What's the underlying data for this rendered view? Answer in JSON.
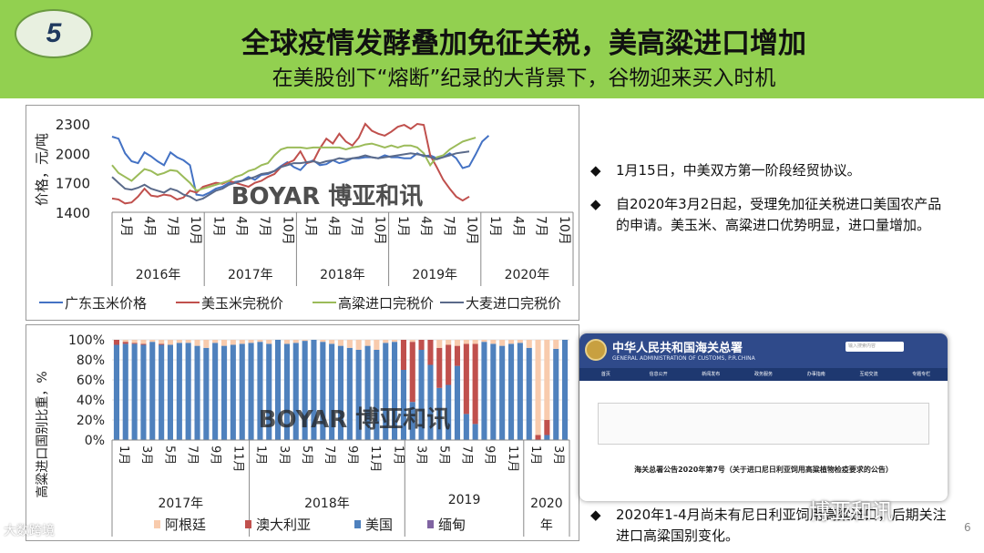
{
  "header": {
    "badge": "5",
    "title": "全球疫情发酵叠加免征关税，美高粱进口增加",
    "subtitle": "在美股创下“熔断”纪录的大背景下，谷物迎来买入时机"
  },
  "chart_data": [
    {
      "type": "line",
      "ylabel": "价格，元/吨",
      "ylim": [
        1400,
        2300
      ],
      "yticks": [
        1400,
        1700,
        2000,
        2300
      ],
      "x_tick_labels": [
        "1月",
        "4月",
        "7月",
        "10月",
        "1月",
        "4月",
        "7月",
        "10月",
        "1月",
        "4月",
        "7月",
        "10月",
        "1月",
        "4月",
        "7月",
        "10月",
        "1月",
        "4月",
        "7月",
        "10月"
      ],
      "year_labels": [
        "2016年",
        "2017年",
        "2018年",
        "2019年",
        "2020年"
      ],
      "watermark": "BOYAR 博亚和讯",
      "series": [
        {
          "name": "广东玉米价格",
          "color": "#4472c4",
          "values": [
            2170,
            2150,
            2000,
            1920,
            1900,
            2010,
            1970,
            1920,
            1880,
            2010,
            1960,
            1930,
            1880,
            1580,
            1570,
            1600,
            1640,
            1660,
            1700,
            1710,
            1720,
            1760,
            1730,
            1780,
            1790,
            1820,
            1870,
            1910,
            1860,
            1830,
            1900,
            1930,
            1880,
            1890,
            1930,
            1900,
            1920,
            1950,
            1950,
            1960,
            1960,
            1950,
            1980,
            1960,
            1960,
            1950,
            1950,
            2000,
            1970,
            1980,
            1950,
            1960,
            2000,
            1950,
            1850,
            1870,
            1990,
            2120,
            2180,
            null,
            null,
            null,
            null,
            null,
            null,
            null,
            null,
            null,
            null,
            null,
            null,
            null
          ]
        },
        {
          "name": "美玉米完税价",
          "color": "#c0504d",
          "values": [
            1540,
            1530,
            1490,
            1500,
            1560,
            1640,
            1570,
            1560,
            1580,
            1570,
            1530,
            1550,
            1620,
            1600,
            1660,
            1680,
            1700,
            1690,
            1720,
            1700,
            1680,
            1660,
            1700,
            1720,
            1760,
            1790,
            1860,
            1900,
            1930,
            2020,
            1900,
            1920,
            2050,
            2150,
            2100,
            2200,
            2120,
            2080,
            2160,
            2300,
            2230,
            2200,
            2180,
            2220,
            2270,
            2290,
            2250,
            2300,
            2290,
            1980,
            1860,
            1730,
            1640,
            1560,
            1520,
            1560,
            null,
            null,
            null,
            null,
            null,
            null,
            null,
            null,
            null,
            null,
            null,
            null,
            null,
            null,
            null,
            null
          ]
        },
        {
          "name": "高粱进口完税价",
          "color": "#9bbb59",
          "values": [
            1880,
            1800,
            1760,
            1720,
            1780,
            1840,
            1820,
            1780,
            1800,
            1830,
            1820,
            1760,
            1700,
            1620,
            1640,
            1660,
            1680,
            1700,
            1720,
            1760,
            1780,
            1820,
            1840,
            1880,
            1900,
            1980,
            2040,
            2060,
            2060,
            2060,
            2050,
            2060,
            2060,
            2060,
            2060,
            2060,
            2040,
            2060,
            2070,
            2090,
            2100,
            2080,
            2060,
            2080,
            2060,
            2080,
            2080,
            2060,
            2000,
            1880,
            1960,
            1980,
            2040,
            2080,
            2120,
            2140,
            2160,
            null,
            null,
            null,
            null,
            null,
            null,
            null,
            null,
            null,
            null,
            null,
            null,
            null,
            null,
            null
          ]
        },
        {
          "name": "大麦进口完税价",
          "color": "#5a6a8a",
          "values": [
            1760,
            1700,
            1640,
            1630,
            1650,
            1680,
            1640,
            1620,
            1600,
            1640,
            1620,
            1580,
            1560,
            1520,
            1540,
            1580,
            1620,
            1640,
            1680,
            1700,
            1720,
            1740,
            1760,
            1790,
            1800,
            1820,
            1860,
            1880,
            1900,
            1900,
            1910,
            1920,
            1900,
            1920,
            1930,
            1950,
            1940,
            1950,
            1960,
            1980,
            1960,
            1950,
            1960,
            1970,
            1980,
            1990,
            2000,
            1990,
            1980,
            1960,
            1940,
            1960,
            1980,
            2000,
            2010,
            2020,
            null,
            null,
            null,
            null,
            null,
            null,
            null,
            null,
            null,
            null,
            null,
            null,
            null,
            null,
            null,
            null
          ]
        }
      ]
    },
    {
      "type": "bar",
      "stacked": true,
      "ylabel": "高粱进口国别比重，%",
      "ylim": [
        0,
        100
      ],
      "yticks": [
        "0%",
        "20%",
        "40%",
        "60%",
        "80%",
        "100%"
      ],
      "x_tick_labels": [
        "1月",
        "3月",
        "5月",
        "7月",
        "9月",
        "11月",
        "1月",
        "3月",
        "5月",
        "7月",
        "9月",
        "11月",
        "1月",
        "3月",
        "5月",
        "7月",
        "9月",
        "11月",
        "1月",
        "3月"
      ],
      "year_labels": [
        "2017年",
        "2018年",
        "2019",
        "2020年"
      ],
      "watermark": "BOYAR 博亚和讯",
      "series": [
        {
          "name": "阿根廷",
          "color": "#f8cbad",
          "values": [
            0,
            2,
            3,
            4,
            2,
            4,
            5,
            3,
            3,
            6,
            8,
            3,
            6,
            5,
            4,
            3,
            2,
            4,
            0,
            4,
            3,
            1,
            0,
            2,
            4,
            6,
            8,
            10,
            6,
            10,
            3,
            2,
            0,
            2,
            0,
            0,
            8,
            5,
            6,
            4,
            4,
            2,
            4,
            6,
            4,
            3,
            8,
            95,
            80,
            9,
            0
          ]
        },
        {
          "name": "澳大利亚",
          "color": "#c0504d",
          "values": [
            5,
            2,
            1,
            1,
            0,
            1,
            0,
            0,
            0,
            0,
            0,
            0,
            0,
            0,
            0,
            0,
            0,
            0,
            0,
            0,
            0,
            0,
            0,
            0,
            0,
            0,
            0,
            0,
            0,
            0,
            0,
            0,
            30,
            60,
            10,
            25,
            40,
            40,
            20,
            70,
            80,
            0,
            0,
            0,
            0,
            0,
            0,
            5,
            15,
            0,
            0
          ]
        },
        {
          "name": "美国",
          "color": "#4f81bd",
          "values": [
            95,
            96,
            96,
            95,
            98,
            95,
            95,
            97,
            97,
            94,
            92,
            97,
            94,
            95,
            96,
            97,
            98,
            96,
            100,
            96,
            97,
            99,
            100,
            98,
            96,
            94,
            92,
            90,
            94,
            90,
            97,
            98,
            70,
            38,
            90,
            75,
            52,
            55,
            74,
            26,
            16,
            98,
            96,
            94,
            96,
            97,
            92,
            0,
            5,
            91,
            100
          ]
        },
        {
          "name": "缅甸",
          "color": "#8064a2",
          "values": [
            0,
            0,
            0,
            0,
            0,
            0,
            0,
            0,
            0,
            0,
            0,
            0,
            0,
            0,
            0,
            0,
            0,
            0,
            0,
            0,
            0,
            0,
            0,
            0,
            0,
            0,
            0,
            0,
            0,
            0,
            0,
            0,
            0,
            0,
            0,
            0,
            0,
            0,
            0,
            0,
            0,
            0,
            0,
            0,
            0,
            0,
            0,
            0,
            0,
            0,
            0
          ]
        }
      ]
    }
  ],
  "bullets": [
    {
      "mark": "◆",
      "text": "1月15日，中美双方第一阶段经贸协议。"
    },
    {
      "mark": "◆",
      "text": "自2020年3月2日起，受理免加征关税进口美国农产品的申请。美玉米、高粱进口优势明显，进口量增加。"
    }
  ],
  "screenshot": {
    "org": "中华人民共和国海关总署",
    "org_en": "GENERAL ADMINISTRATION OF CUSTOMS, P.R.CHINA",
    "search_placeholder": "输入搜索内容",
    "nav": [
      "首页",
      "信息公开",
      "新闻发布",
      "政务服务",
      "办事指南",
      "互动交流",
      "专题专栏"
    ],
    "doc_title": "海关总署公告2020年第7号（关于进口尼日利亚饲用高粱植物检疫要求的公告）"
  },
  "bullet3": {
    "mark": "◆",
    "text": "2020年1-4月尚未有尼日利亚饲用高粱进口，后期关注进口高粱国别变化。"
  },
  "footer": {
    "left_logo": "大数跨境",
    "wechat": "博亚和讯",
    "page": "6"
  }
}
